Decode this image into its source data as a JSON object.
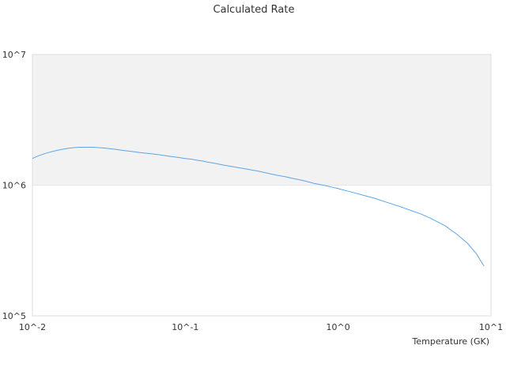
{
  "chart_data": {
    "type": "line",
    "title": "Calculated Rate",
    "xlabel": "Temperature (GK)",
    "ylabel": "",
    "xscale": "log",
    "yscale": "log",
    "xlim": [
      0.01,
      10
    ],
    "ylim": [
      100000,
      10000000
    ],
    "x_tick_labels": [
      "10^-2",
      "10^-1",
      "10^0",
      "10^1"
    ],
    "y_tick_labels": [
      "10^5",
      "10^6",
      "10^7"
    ],
    "grid": false,
    "legend": "none",
    "shaded_band": {
      "from": 1000000,
      "to": 10000000,
      "color": "#f2f2f2"
    },
    "series": [
      {
        "color": "#5da5e6",
        "x": [
          0.01,
          0.011,
          0.012,
          0.013,
          0.014,
          0.015,
          0.016,
          0.018,
          0.02,
          0.025,
          0.03,
          0.035,
          0.04,
          0.045,
          0.05,
          0.06,
          0.07,
          0.08,
          0.09,
          0.1,
          0.11,
          0.12,
          0.13,
          0.14,
          0.15,
          0.16,
          0.18,
          0.2,
          0.25,
          0.3,
          0.35,
          0.4,
          0.45,
          0.5,
          0.6,
          0.7,
          0.8,
          0.9,
          1.0,
          1.25,
          1.5,
          1.75,
          2.0,
          2.5,
          3.0,
          3.5,
          4.0,
          5.0,
          6.0,
          7.0,
          8.0,
          9.0
        ],
        "y": [
          1600000,
          1680000,
          1740000,
          1790000,
          1830000,
          1860000,
          1890000,
          1930000,
          1950000,
          1950000,
          1920000,
          1880000,
          1840000,
          1810000,
          1780000,
          1740000,
          1700000,
          1660000,
          1630000,
          1600000,
          1580000,
          1550000,
          1530000,
          1500000,
          1480000,
          1460000,
          1420000,
          1390000,
          1330000,
          1280000,
          1230000,
          1190000,
          1160000,
          1130000,
          1080000,
          1030000,
          1000000,
          970000,
          940000,
          880000,
          830000,
          790000,
          750000,
          690000,
          640000,
          600000,
          560000,
          490000,
          420000,
          360000,
          300000,
          240000
        ]
      }
    ]
  }
}
